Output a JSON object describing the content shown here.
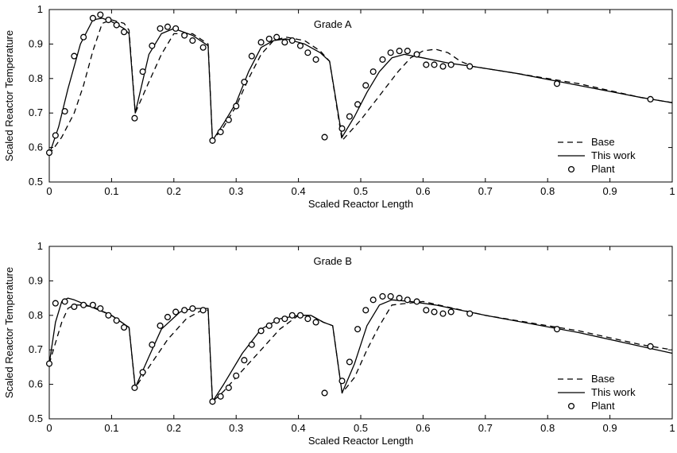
{
  "chart_data": [
    {
      "type": "line",
      "annotation": "Grade A",
      "xlabel": "Scaled Reactor Length",
      "ylabel": "Scaled Reactor Temperature",
      "xlim": [
        0,
        1
      ],
      "ylim": [
        0.5,
        1
      ],
      "xticks": [
        "0",
        "0.1",
        "0.2",
        "0.3",
        "0.4",
        "0.5",
        "0.6",
        "0.7",
        "0.8",
        "0.9",
        "1"
      ],
      "yticks": [
        "0.5",
        "0.6",
        "0.7",
        "0.8",
        "0.9",
        "1"
      ],
      "grid": false,
      "legend": {
        "placement": "lower-right",
        "entries": [
          "Base",
          "This work",
          "Plant"
        ]
      },
      "series": [
        {
          "name": "Base",
          "style": "dashed",
          "x": [
            0,
            0.02,
            0.04,
            0.055,
            0.07,
            0.085,
            0.1,
            0.12,
            0.128,
            0.138,
            0.16,
            0.18,
            0.2,
            0.23,
            0.255,
            0.262,
            0.28,
            0.3,
            0.32,
            0.34,
            0.36,
            0.38,
            0.41,
            0.435,
            0.45,
            0.47,
            0.5,
            0.53,
            0.56,
            0.58,
            0.6,
            0.62,
            0.64,
            0.66,
            0.68,
            0.75,
            0.85,
            0.95,
            1.0
          ],
          "y": [
            0.58,
            0.63,
            0.7,
            0.78,
            0.88,
            0.96,
            0.97,
            0.96,
            0.94,
            0.7,
            0.79,
            0.87,
            0.93,
            0.93,
            0.9,
            0.62,
            0.66,
            0.72,
            0.8,
            0.87,
            0.91,
            0.92,
            0.91,
            0.88,
            0.85,
            0.62,
            0.68,
            0.75,
            0.82,
            0.86,
            0.88,
            0.885,
            0.875,
            0.85,
            0.835,
            0.815,
            0.785,
            0.745,
            0.73
          ]
        },
        {
          "name": "This work",
          "style": "solid",
          "x": [
            0,
            0.015,
            0.03,
            0.05,
            0.07,
            0.085,
            0.1,
            0.12,
            0.128,
            0.138,
            0.16,
            0.18,
            0.2,
            0.23,
            0.255,
            0.262,
            0.28,
            0.3,
            0.32,
            0.34,
            0.36,
            0.38,
            0.41,
            0.435,
            0.45,
            0.47,
            0.49,
            0.51,
            0.53,
            0.55,
            0.57,
            0.6,
            0.64,
            0.68,
            0.75,
            0.85,
            0.95,
            1.0
          ],
          "y": [
            0.58,
            0.66,
            0.77,
            0.9,
            0.97,
            0.975,
            0.965,
            0.945,
            0.93,
            0.7,
            0.87,
            0.93,
            0.945,
            0.925,
            0.895,
            0.62,
            0.67,
            0.73,
            0.82,
            0.89,
            0.91,
            0.915,
            0.9,
            0.875,
            0.85,
            0.63,
            0.69,
            0.76,
            0.82,
            0.86,
            0.87,
            0.86,
            0.845,
            0.835,
            0.815,
            0.78,
            0.745,
            0.73
          ]
        },
        {
          "name": "Plant",
          "style": "markers",
          "x": [
            0,
            0.01,
            0.025,
            0.04,
            0.055,
            0.07,
            0.082,
            0.095,
            0.108,
            0.12,
            0.137,
            0.15,
            0.165,
            0.178,
            0.19,
            0.203,
            0.217,
            0.23,
            0.247,
            0.262,
            0.275,
            0.288,
            0.3,
            0.313,
            0.325,
            0.34,
            0.353,
            0.365,
            0.378,
            0.39,
            0.403,
            0.415,
            0.428,
            0.442,
            0.47,
            0.482,
            0.495,
            0.508,
            0.52,
            0.535,
            0.548,
            0.562,
            0.575,
            0.59,
            0.605,
            0.618,
            0.632,
            0.645,
            0.675,
            0.815,
            0.965
          ],
          "y": [
            0.585,
            0.635,
            0.705,
            0.865,
            0.92,
            0.975,
            0.985,
            0.97,
            0.955,
            0.935,
            0.685,
            0.82,
            0.895,
            0.945,
            0.95,
            0.945,
            0.925,
            0.91,
            0.89,
            0.62,
            0.645,
            0.68,
            0.72,
            0.79,
            0.865,
            0.905,
            0.915,
            0.92,
            0.905,
            0.91,
            0.895,
            0.875,
            0.855,
            0.63,
            0.655,
            0.69,
            0.725,
            0.78,
            0.82,
            0.855,
            0.875,
            0.88,
            0.88,
            0.87,
            0.84,
            0.84,
            0.835,
            0.84,
            0.835,
            0.785,
            0.74
          ]
        }
      ]
    },
    {
      "type": "line",
      "annotation": "Grade B",
      "xlabel": "Scaled Reactor Length",
      "ylabel": "Scaled Reactor Temperature",
      "xlim": [
        0,
        1
      ],
      "ylim": [
        0.5,
        1
      ],
      "xticks": [
        "0",
        "0.1",
        "0.2",
        "0.3",
        "0.4",
        "0.5",
        "0.6",
        "0.7",
        "0.8",
        "0.9",
        "1"
      ],
      "yticks": [
        "0.5",
        "0.6",
        "0.7",
        "0.8",
        "0.9",
        "1"
      ],
      "grid": false,
      "legend": {
        "placement": "lower-right",
        "entries": [
          "Base",
          "This work",
          "Plant"
        ]
      },
      "series": [
        {
          "name": "Base",
          "style": "dashed",
          "x": [
            0,
            0.01,
            0.02,
            0.03,
            0.04,
            0.05,
            0.07,
            0.1,
            0.128,
            0.138,
            0.16,
            0.19,
            0.22,
            0.245,
            0.255,
            0.262,
            0.28,
            0.31,
            0.34,
            0.37,
            0.4,
            0.42,
            0.44,
            0.455,
            0.47,
            0.49,
            0.51,
            0.53,
            0.55,
            0.6,
            0.7,
            0.85,
            0.95,
            1.0
          ],
          "y": [
            0.66,
            0.72,
            0.78,
            0.82,
            0.83,
            0.83,
            0.825,
            0.8,
            0.765,
            0.59,
            0.65,
            0.73,
            0.79,
            0.815,
            0.815,
            0.55,
            0.58,
            0.64,
            0.7,
            0.76,
            0.8,
            0.8,
            0.78,
            0.77,
            0.575,
            0.62,
            0.7,
            0.77,
            0.83,
            0.84,
            0.8,
            0.755,
            0.715,
            0.7
          ]
        },
        {
          "name": "This work",
          "style": "solid",
          "x": [
            0,
            0.01,
            0.02,
            0.03,
            0.04,
            0.06,
            0.08,
            0.1,
            0.128,
            0.138,
            0.16,
            0.18,
            0.21,
            0.23,
            0.255,
            0.262,
            0.28,
            0.31,
            0.34,
            0.37,
            0.4,
            0.42,
            0.44,
            0.455,
            0.47,
            0.49,
            0.51,
            0.53,
            0.55,
            0.58,
            0.62,
            0.7,
            0.85,
            0.95,
            1.0
          ],
          "y": [
            0.66,
            0.78,
            0.84,
            0.85,
            0.845,
            0.83,
            0.815,
            0.8,
            0.765,
            0.59,
            0.68,
            0.76,
            0.81,
            0.82,
            0.82,
            0.55,
            0.6,
            0.69,
            0.76,
            0.79,
            0.8,
            0.8,
            0.78,
            0.77,
            0.575,
            0.66,
            0.77,
            0.83,
            0.845,
            0.84,
            0.83,
            0.8,
            0.75,
            0.71,
            0.69
          ]
        },
        {
          "name": "Plant",
          "style": "markers",
          "x": [
            0,
            0.01,
            0.025,
            0.04,
            0.055,
            0.07,
            0.082,
            0.095,
            0.108,
            0.12,
            0.137,
            0.15,
            0.165,
            0.178,
            0.19,
            0.203,
            0.217,
            0.23,
            0.247,
            0.262,
            0.275,
            0.288,
            0.3,
            0.313,
            0.325,
            0.34,
            0.353,
            0.365,
            0.378,
            0.39,
            0.403,
            0.415,
            0.428,
            0.442,
            0.47,
            0.482,
            0.495,
            0.508,
            0.52,
            0.535,
            0.548,
            0.562,
            0.575,
            0.59,
            0.605,
            0.618,
            0.632,
            0.645,
            0.675,
            0.815,
            0.965
          ],
          "y": [
            0.66,
            0.835,
            0.84,
            0.825,
            0.83,
            0.83,
            0.82,
            0.8,
            0.785,
            0.765,
            0.59,
            0.635,
            0.715,
            0.77,
            0.795,
            0.81,
            0.815,
            0.82,
            0.815,
            0.55,
            0.565,
            0.59,
            0.625,
            0.67,
            0.715,
            0.755,
            0.77,
            0.785,
            0.79,
            0.8,
            0.8,
            0.79,
            0.78,
            0.575,
            0.61,
            0.665,
            0.76,
            0.815,
            0.845,
            0.855,
            0.855,
            0.85,
            0.845,
            0.84,
            0.815,
            0.81,
            0.805,
            0.81,
            0.805,
            0.76,
            0.71
          ]
        }
      ]
    }
  ]
}
